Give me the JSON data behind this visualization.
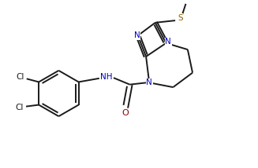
{
  "background": "#ffffff",
  "bond_color": "#1a1a1a",
  "atom_colors": {
    "N": "#0000b8",
    "O": "#8b0000",
    "S": "#8b6400",
    "Cl": "#1a1a1a",
    "C": "#1a1a1a",
    "H": "#1a1a1a"
  },
  "figsize": [
    3.27,
    2.14
  ],
  "dpi": 100,
  "xlim": [
    0,
    9.5
  ],
  "ylim": [
    0,
    6.2
  ]
}
